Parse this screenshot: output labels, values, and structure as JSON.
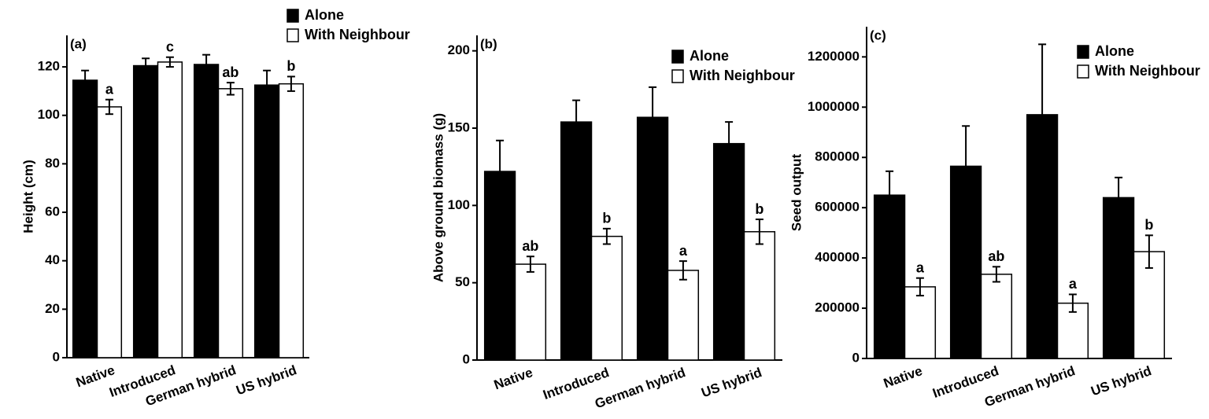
{
  "chart_data": [
    {
      "type": "bar",
      "panel_label": "(a)",
      "ylabel": "Height (cm)",
      "categories": [
        "Native",
        "Introduced",
        "German hybrid",
        "US hybrid"
      ],
      "series": [
        {
          "name": "Alone",
          "color": "#000000",
          "values": [
            114.5,
            120.5,
            121,
            112.5
          ],
          "errors": [
            4,
            3,
            4,
            6
          ]
        },
        {
          "name": "With Neighbour",
          "color": "#ffffff",
          "values": [
            103.5,
            122,
            111,
            113
          ],
          "errors": [
            3,
            2,
            2.5,
            3
          ],
          "annotations": [
            "a",
            "c",
            "ab",
            "b"
          ]
        }
      ],
      "ylim": [
        0,
        133
      ],
      "yticks": [
        0,
        20,
        40,
        60,
        80,
        100,
        120
      ],
      "legend": "top right"
    },
    {
      "type": "bar",
      "panel_label": "(b)",
      "ylabel": "Above ground biomass (g)",
      "categories": [
        "Native",
        "Introduced",
        "German hybrid",
        "US hybrid"
      ],
      "series": [
        {
          "name": "Alone",
          "color": "#000000",
          "values": [
            122,
            154,
            157,
            140
          ],
          "errors": [
            20,
            14,
            19.5,
            14
          ]
        },
        {
          "name": "With Neighbour",
          "color": "#ffffff",
          "values": [
            62,
            80,
            58,
            83
          ],
          "errors": [
            5,
            5,
            6,
            8
          ],
          "annotations": [
            "ab",
            "b",
            "a",
            "b"
          ]
        }
      ],
      "ylim": [
        0,
        210
      ],
      "yticks": [
        0,
        50,
        100,
        150,
        200
      ],
      "legend": "top right"
    },
    {
      "type": "bar",
      "panel_label": "(c)",
      "ylabel": "Seed output",
      "categories": [
        "Native",
        "Introduced",
        "German hybrid",
        "US hybrid"
      ],
      "series": [
        {
          "name": "Alone",
          "color": "#000000",
          "values": [
            650000,
            765000,
            970000,
            640000
          ],
          "errors": [
            95000,
            160000,
            280000,
            80000
          ]
        },
        {
          "name": "With Neighbour",
          "color": "#ffffff",
          "values": [
            285000,
            335000,
            220000,
            425000
          ],
          "errors": [
            35000,
            30000,
            35000,
            65000
          ],
          "annotations": [
            "a",
            "ab",
            "a",
            "b"
          ]
        }
      ],
      "ylim": [
        0,
        1320000
      ],
      "yticks": [
        0,
        200000,
        400000,
        600000,
        800000,
        1000000,
        1200000
      ],
      "legend": "top right"
    }
  ]
}
